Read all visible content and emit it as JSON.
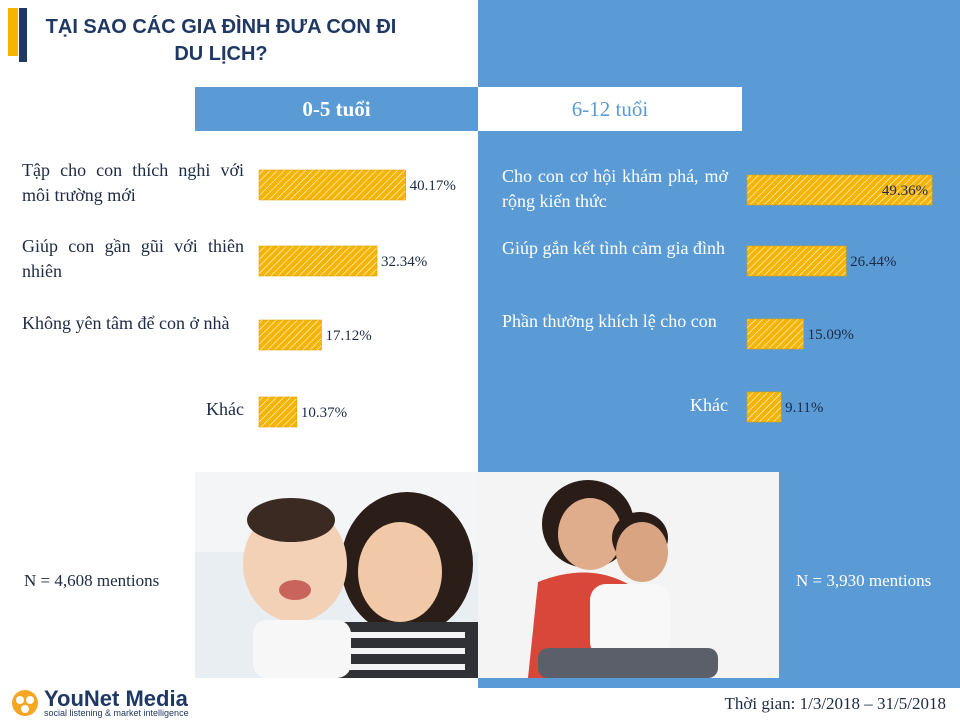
{
  "title": "TẠI SAO CÁC GIA ĐÌNH ĐƯA CON ĐI DU LỊCH?",
  "colors": {
    "panel": "#5b9bd5",
    "bar": "#f5b400",
    "title": "#1f3864"
  },
  "groups": [
    {
      "header": "0-5 tuổi",
      "sample": "N = 4,608 mentions"
    },
    {
      "header": "6-12 tuổi",
      "sample": "N = 3,930 mentions"
    }
  ],
  "chart_data": [
    {
      "type": "bar",
      "orientation": "horizontal",
      "title": "0-5 tuổi",
      "categories": [
        "Tập cho con thích nghi với môi trường mới",
        "Giúp con gần gũi với thiên nhiên",
        "Không yên tâm để con ở nhà",
        "Khác"
      ],
      "values": [
        40.17,
        32.34,
        17.12,
        10.37
      ],
      "value_labels": [
        "40.17%",
        "32.34%",
        "17.12%",
        "10.37%"
      ],
      "unit": "%",
      "grid": false,
      "legend": "none"
    },
    {
      "type": "bar",
      "orientation": "horizontal",
      "title": "6-12 tuổi",
      "categories": [
        "Cho con cơ hội khám phá, mở rộng kiến thức",
        "Giúp gắn kết tình cảm gia đình",
        "Phần thưởng khích lệ cho con",
        "Khác"
      ],
      "values": [
        49.36,
        26.44,
        15.09,
        9.11
      ],
      "value_labels": [
        "49.36%",
        "26.44%",
        "15.09%",
        "9.11%"
      ],
      "unit": "%",
      "grid": false,
      "legend": "none"
    }
  ],
  "logo": {
    "name": "YouNet Media",
    "tagline": "social listening & market intelligence"
  },
  "period": "Thời gian: 1/3/2018 – 31/5/2018"
}
